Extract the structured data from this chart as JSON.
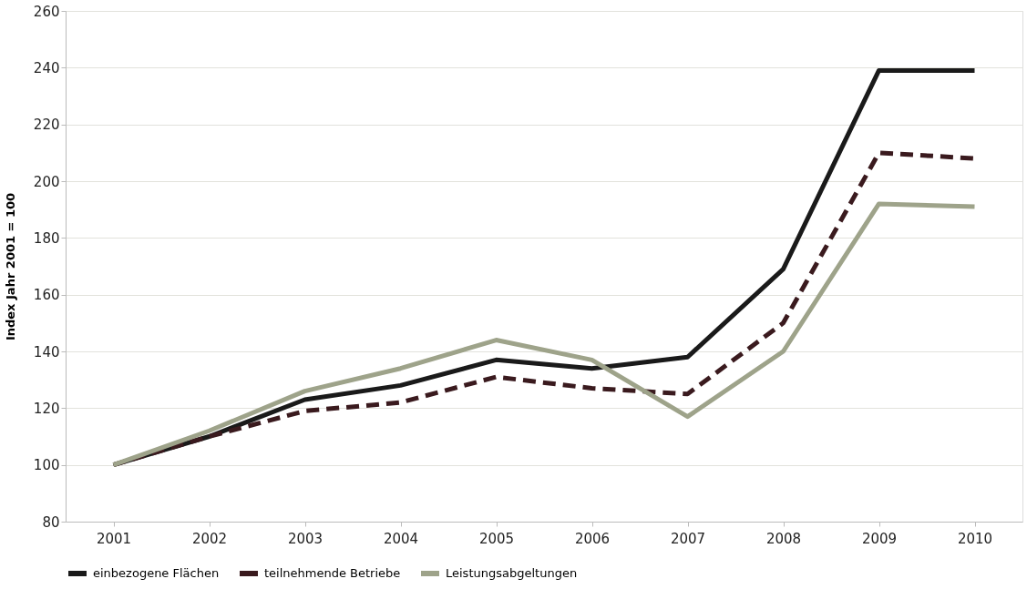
{
  "chart_data": {
    "type": "line",
    "ylabel": "Index Jahr 2001 = 100",
    "categories": [
      "2001",
      "2002",
      "2003",
      "2004",
      "2005",
      "2006",
      "2007",
      "2008",
      "2009",
      "2010"
    ],
    "series": [
      {
        "name": "einbezogene Flächen",
        "color": "#1a1a1a",
        "line_style": "solid",
        "values": [
          100,
          110,
          123,
          128,
          137,
          134,
          138,
          169,
          239,
          239
        ]
      },
      {
        "name": "teilnehmende Betriebe",
        "color": "#3a1a1e",
        "line_style": "dashed",
        "values": [
          100,
          110,
          119,
          122,
          131,
          127,
          125,
          150,
          210,
          208
        ]
      },
      {
        "name": "Leistungsabgeltungen",
        "color": "#9ea38a",
        "line_style": "solid",
        "values": [
          100,
          112,
          126,
          134,
          144,
          137,
          117,
          140,
          192,
          191
        ]
      }
    ],
    "ylim": [
      80,
      260
    ],
    "yticks": [
      80,
      100,
      120,
      140,
      160,
      180,
      200,
      220,
      240,
      260
    ],
    "grid": "y",
    "legend": "bottom",
    "marker": "none"
  }
}
